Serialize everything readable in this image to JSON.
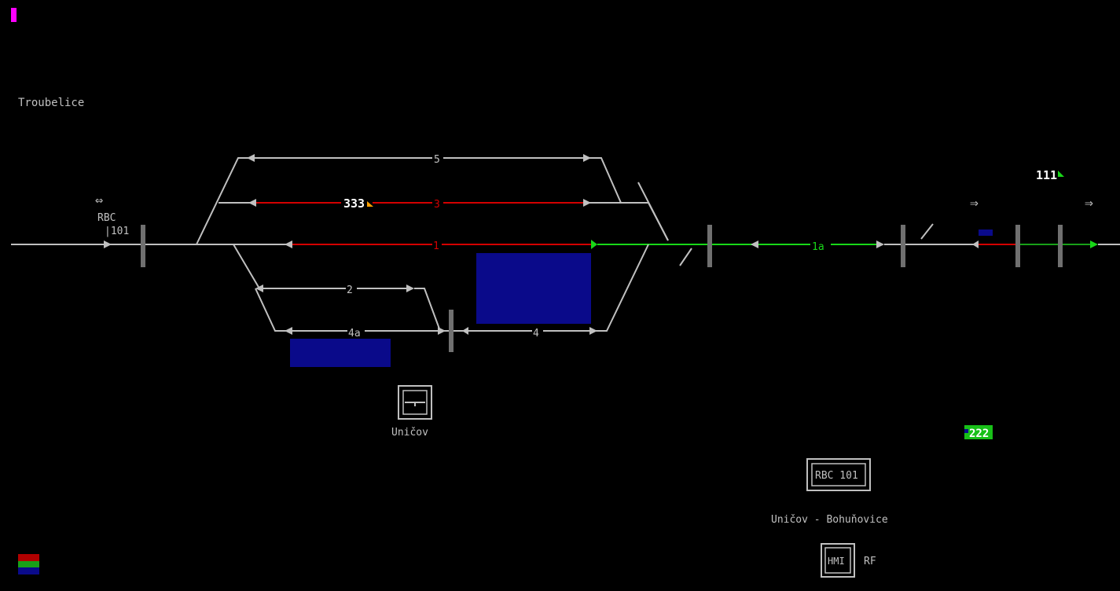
{
  "colors": {
    "background": "#000000",
    "track_free": "#c0c0c0",
    "track_occupied": "#d40000",
    "track_route_set": "#18d818",
    "occupancy_block": "#0a0a8a",
    "train_marker_orange": "#ffa000",
    "train_marker_green": "#18d818",
    "indicator_magenta": "#ff00ff"
  },
  "labels": {
    "station_left": "Troubelice",
    "rbc_label": "RBC",
    "rbc_id": "|101",
    "station_main": "Uničov",
    "rbc_box": "RBC 101",
    "route_name": "Uničov - Bohuňovice",
    "hmi_box": "HMI",
    "hmi_suffix": "RF"
  },
  "tracks": {
    "track_5": "5",
    "track_3": "3",
    "track_1": "1",
    "track_1a": "1a",
    "track_2": "2",
    "track_4a": "4a",
    "track_4": "4"
  },
  "trains": [
    {
      "number": "333",
      "marker": "orange"
    },
    {
      "number": "111",
      "marker": "green"
    },
    {
      "number": "222",
      "marker": "green-badge"
    }
  ],
  "icons": {
    "rbc_bidirectional": "left-right-arrow-icon",
    "direction_arrows": [
      "⇒",
      "⇒"
    ],
    "rbc_arrow_glyph": "⇔"
  },
  "legend": [
    "red",
    "green",
    "blue"
  ]
}
